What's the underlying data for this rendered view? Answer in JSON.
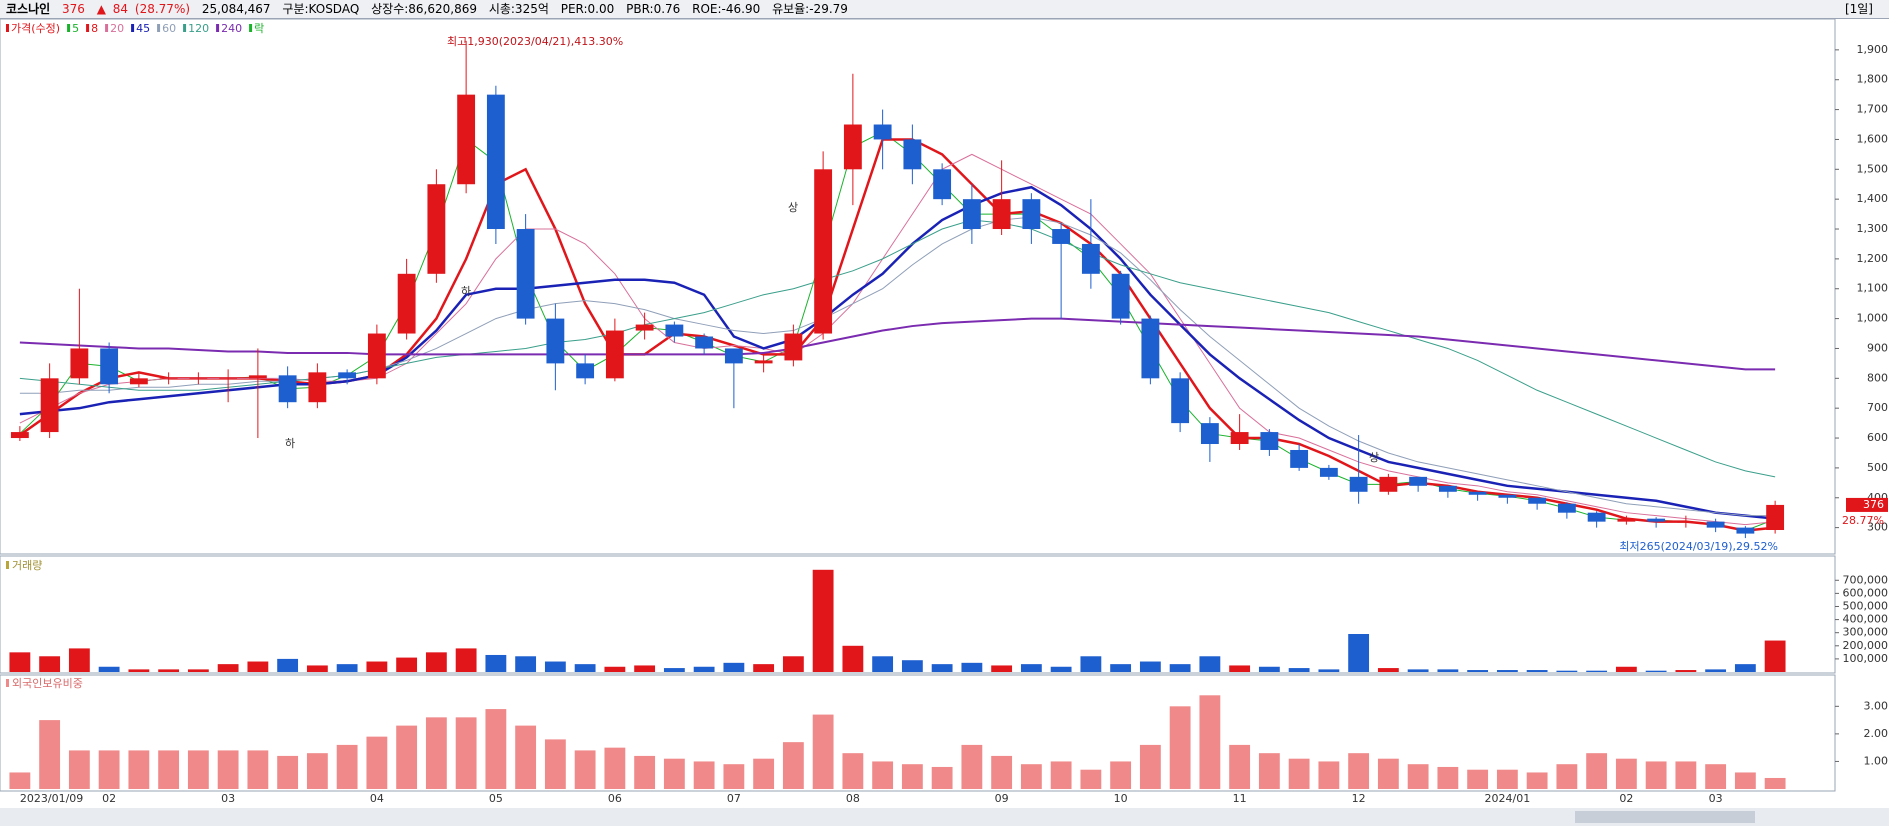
{
  "header": {
    "name": "코스나인",
    "price": "376",
    "arrow": "▲",
    "change": "84",
    "change_pct": "(28.77%)",
    "volume": "25,084,467",
    "market": "구분:KOSDAQ",
    "shares": "상장수:86,620,869",
    "cap": "시총:325억",
    "per": "PER:0.00",
    "pbr": "PBR:0.76",
    "roe": "ROE:-46.90",
    "reserve": "유보율:-29.79",
    "period": "[1일]"
  },
  "chart_data": [
    {
      "type": "candlestick",
      "title": "가격(수정)",
      "extra_legend": "락",
      "up_color": "#e0161b",
      "down_color": "#1e5fcf",
      "categories": [
        "2023/01/09",
        null,
        null,
        "02",
        null,
        null,
        null,
        "03",
        null,
        null,
        null,
        null,
        "04",
        null,
        null,
        null,
        "05",
        null,
        null,
        null,
        "06",
        null,
        null,
        null,
        "07",
        null,
        null,
        null,
        "08",
        null,
        null,
        null,
        null,
        "09",
        null,
        null,
        null,
        "10",
        null,
        null,
        null,
        "11",
        null,
        null,
        null,
        "12",
        null,
        null,
        null,
        null,
        "2024/01",
        null,
        null,
        null,
        "02",
        null,
        null,
        "03",
        null,
        null
      ],
      "open": [
        600,
        620,
        800,
        900,
        780,
        800,
        800,
        800,
        800,
        810,
        720,
        820,
        800,
        950,
        1150,
        1450,
        1750,
        1300,
        1000,
        850,
        800,
        960,
        980,
        940,
        900,
        850,
        860,
        950,
        1500,
        1650,
        1600,
        1500,
        1400,
        1300,
        1400,
        1300,
        1250,
        1150,
        1000,
        800,
        650,
        580,
        620,
        560,
        500,
        470,
        420,
        470,
        440,
        420,
        410,
        400,
        380,
        350,
        320,
        330,
        320,
        320,
        300,
        292
      ],
      "high": [
        640,
        850,
        1100,
        920,
        820,
        820,
        820,
        830,
        900,
        840,
        850,
        830,
        980,
        1200,
        1500,
        1930,
        1780,
        1350,
        1050,
        880,
        1000,
        1020,
        990,
        950,
        900,
        880,
        980,
        1560,
        1820,
        1700,
        1650,
        1520,
        1450,
        1530,
        1420,
        1320,
        1400,
        1160,
        1010,
        820,
        670,
        680,
        630,
        580,
        510,
        610,
        480,
        470,
        440,
        420,
        410,
        400,
        385,
        355,
        340,
        335,
        340,
        330,
        305,
        390
      ],
      "low": [
        590,
        600,
        780,
        750,
        770,
        780,
        780,
        720,
        600,
        700,
        700,
        780,
        780,
        930,
        1120,
        1420,
        1250,
        980,
        760,
        780,
        790,
        930,
        920,
        880,
        700,
        820,
        840,
        930,
        1380,
        1500,
        1450,
        1380,
        1250,
        1280,
        1250,
        1000,
        1100,
        980,
        780,
        620,
        520,
        560,
        540,
        490,
        460,
        380,
        410,
        420,
        400,
        390,
        380,
        360,
        330,
        300,
        310,
        300,
        300,
        285,
        265,
        280
      ],
      "close": [
        620,
        800,
        900,
        780,
        800,
        800,
        800,
        800,
        810,
        720,
        820,
        800,
        950,
        1150,
        1450,
        1750,
        1300,
        1000,
        850,
        800,
        960,
        980,
        940,
        900,
        850,
        860,
        950,
        1500,
        1650,
        1600,
        1500,
        1400,
        1300,
        1400,
        1300,
        1250,
        1150,
        1000,
        800,
        650,
        580,
        620,
        560,
        500,
        470,
        420,
        470,
        440,
        420,
        410,
        400,
        380,
        350,
        320,
        330,
        320,
        320,
        300,
        280,
        376
      ],
      "series": [
        {
          "name": "5",
          "color": "#19b32a",
          "width": 1,
          "values": [
            615,
            710,
            850,
            840,
            790,
            800,
            800,
            800,
            805,
            765,
            770,
            810,
            875,
            1050,
            1300,
            1600,
            1525,
            1150,
            925,
            825,
            880,
            970,
            960,
            920,
            875,
            855,
            905,
            1225,
            1575,
            1625,
            1550,
            1450,
            1350,
            1350,
            1350,
            1275,
            1200,
            1075,
            900,
            725,
            615,
            600,
            590,
            530,
            485,
            445,
            445,
            455,
            430,
            415,
            405,
            390,
            365,
            335,
            325,
            325,
            320,
            310,
            290,
            328
          ]
        },
        {
          "name": "8",
          "color": "#e0161b",
          "width": 2.5,
          "values": [
            610,
            680,
            750,
            800,
            820,
            800,
            800,
            800,
            800,
            790,
            780,
            790,
            810,
            880,
            1000,
            1200,
            1450,
            1500,
            1300,
            1050,
            880,
            880,
            950,
            940,
            910,
            880,
            880,
            1000,
            1300,
            1600,
            1600,
            1550,
            1450,
            1350,
            1360,
            1320,
            1250,
            1150,
            1000,
            850,
            700,
            600,
            600,
            580,
            540,
            490,
            440,
            450,
            440,
            420,
            410,
            400,
            380,
            360,
            330,
            320,
            320,
            310,
            290,
            300
          ]
        },
        {
          "name": "20",
          "color": "#d9709a",
          "width": 1,
          "values": [
            650,
            700,
            750,
            780,
            790,
            800,
            800,
            800,
            800,
            800,
            790,
            790,
            800,
            850,
            950,
            1050,
            1200,
            1300,
            1300,
            1250,
            1150,
            1000,
            920,
            900,
            910,
            900,
            880,
            950,
            1050,
            1200,
            1350,
            1500,
            1550,
            1500,
            1450,
            1400,
            1350,
            1250,
            1150,
            1000,
            850,
            700,
            620,
            600,
            560,
            520,
            490,
            470,
            450,
            440,
            420,
            410,
            390,
            370,
            350,
            340,
            330,
            320,
            310,
            320
          ]
        },
        {
          "name": "45",
          "color": "#1a22b5",
          "width": 2.5,
          "values": [
            680,
            690,
            700,
            720,
            730,
            740,
            750,
            760,
            770,
            780,
            780,
            790,
            810,
            870,
            960,
            1080,
            1100,
            1100,
            1110,
            1120,
            1130,
            1130,
            1120,
            1080,
            940,
            900,
            930,
            1000,
            1080,
            1150,
            1250,
            1330,
            1380,
            1420,
            1440,
            1380,
            1300,
            1200,
            1080,
            980,
            880,
            800,
            730,
            660,
            600,
            560,
            520,
            500,
            480,
            460,
            440,
            430,
            420,
            410,
            400,
            390,
            370,
            350,
            340,
            330
          ]
        },
        {
          "name": "60",
          "color": "#8f9fb8",
          "width": 1,
          "values": [
            750,
            750,
            760,
            760,
            770,
            770,
            780,
            780,
            790,
            790,
            800,
            810,
            830,
            860,
            900,
            950,
            1000,
            1030,
            1050,
            1060,
            1050,
            1030,
            1000,
            980,
            960,
            950,
            960,
            1000,
            1050,
            1100,
            1180,
            1250,
            1300,
            1330,
            1340,
            1320,
            1280,
            1220,
            1130,
            1030,
            940,
            860,
            780,
            700,
            640,
            590,
            550,
            520,
            500,
            480,
            460,
            440,
            420,
            400,
            380,
            370,
            360,
            350,
            340,
            340
          ]
        },
        {
          "name": "120",
          "color": "#3a9f8a",
          "width": 1,
          "values": [
            800,
            790,
            780,
            770,
            760,
            760,
            760,
            770,
            780,
            790,
            800,
            810,
            830,
            850,
            870,
            880,
            890,
            900,
            920,
            930,
            950,
            980,
            1000,
            1020,
            1050,
            1080,
            1100,
            1130,
            1160,
            1200,
            1250,
            1300,
            1330,
            1320,
            1300,
            1260,
            1220,
            1180,
            1150,
            1120,
            1100,
            1080,
            1060,
            1040,
            1020,
            990,
            960,
            930,
            900,
            860,
            810,
            760,
            720,
            680,
            640,
            600,
            560,
            520,
            490,
            470
          ]
        },
        {
          "name": "240",
          "color": "#7a2bb0",
          "width": 2,
          "values": [
            920,
            915,
            910,
            905,
            900,
            900,
            895,
            890,
            890,
            885,
            885,
            885,
            880,
            880,
            880,
            880,
            880,
            880,
            880,
            880,
            880,
            880,
            880,
            880,
            880,
            885,
            900,
            920,
            940,
            960,
            975,
            985,
            990,
            995,
            1000,
            1000,
            995,
            990,
            985,
            980,
            975,
            970,
            965,
            960,
            955,
            950,
            945,
            940,
            930,
            920,
            910,
            900,
            890,
            880,
            870,
            860,
            850,
            840,
            830,
            830
          ]
        }
      ],
      "ylim": [
        215,
        2000
      ],
      "yticks": [
        300,
        400,
        500,
        600,
        700,
        800,
        900,
        {
          "value": 1000,
          "label": "1,000"
        },
        {
          "value": 1100,
          "label": "1,100"
        },
        {
          "value": 1200,
          "label": "1,200"
        },
        {
          "value": 1300,
          "label": "1,300"
        },
        {
          "value": 1400,
          "label": "1,400"
        },
        {
          "value": 1500,
          "label": "1,500"
        },
        {
          "value": 1600,
          "label": "1,600"
        },
        {
          "value": 1700,
          "label": "1,700"
        },
        {
          "value": 1800,
          "label": "1,800"
        },
        {
          "value": 1900,
          "label": "1,900"
        }
      ],
      "annotations": [
        "최고1,930(2023/04/21),413.30%",
        "최저265(2024/03/19),29.52%"
      ],
      "markers": [
        "하",
        "하",
        "상",
        "상"
      ],
      "tag_pct": "28.77%"
    },
    {
      "type": "bar",
      "title": "거래량",
      "up_color": "#e0161b",
      "down_color": "#1e5fcf",
      "values": [
        150000,
        120000,
        180000,
        40000,
        20000,
        20000,
        20000,
        60000,
        80000,
        100000,
        50000,
        60000,
        80000,
        110000,
        150000,
        180000,
        130000,
        120000,
        80000,
        60000,
        40000,
        50000,
        30000,
        40000,
        70000,
        60000,
        120000,
        780000,
        200000,
        120000,
        90000,
        60000,
        70000,
        50000,
        60000,
        40000,
        120000,
        60000,
        80000,
        60000,
        120000,
        50000,
        40000,
        30000,
        20000,
        290000,
        30000,
        20000,
        20000,
        15000,
        15000,
        15000,
        10000,
        10000,
        40000,
        10000,
        15000,
        20000,
        60000,
        240000
      ],
      "ylim": [
        0,
        870000
      ],
      "yticks": [
        {
          "value": 100000,
          "label": "100,000"
        },
        {
          "value": 200000,
          "label": "200,000"
        },
        {
          "value": 300000,
          "label": "300,000"
        },
        {
          "value": 400000,
          "label": "400,000"
        },
        {
          "value": 500000,
          "label": "500,000"
        },
        {
          "value": 600000,
          "label": "600,000"
        },
        {
          "value": 700000,
          "label": "700,000"
        }
      ]
    },
    {
      "type": "bar",
      "title": "외국인보유비중",
      "color": "#f08a8a",
      "values": [
        0.6,
        2.5,
        1.4,
        1.4,
        1.4,
        1.4,
        1.4,
        1.4,
        1.4,
        1.2,
        1.3,
        1.6,
        1.9,
        2.3,
        2.6,
        2.6,
        2.9,
        2.3,
        1.8,
        1.4,
        1.5,
        1.2,
        1.1,
        1.0,
        0.9,
        1.1,
        1.7,
        2.7,
        1.3,
        1.0,
        0.9,
        0.8,
        1.6,
        1.2,
        0.9,
        1.0,
        0.7,
        1.0,
        1.6,
        3.0,
        3.4,
        1.6,
        1.3,
        1.1,
        1.0,
        1.3,
        1.1,
        0.9,
        0.8,
        0.7,
        0.7,
        0.6,
        0.9,
        1.3,
        1.1,
        1.0,
        1.0,
        0.9,
        0.6,
        0.4
      ],
      "ylim": [
        0,
        4.1
      ],
      "yticks": [
        {
          "value": 1,
          "label": "1.00"
        },
        {
          "value": 2,
          "label": "2.00"
        },
        {
          "value": 3,
          "label": "3.00"
        }
      ]
    }
  ]
}
